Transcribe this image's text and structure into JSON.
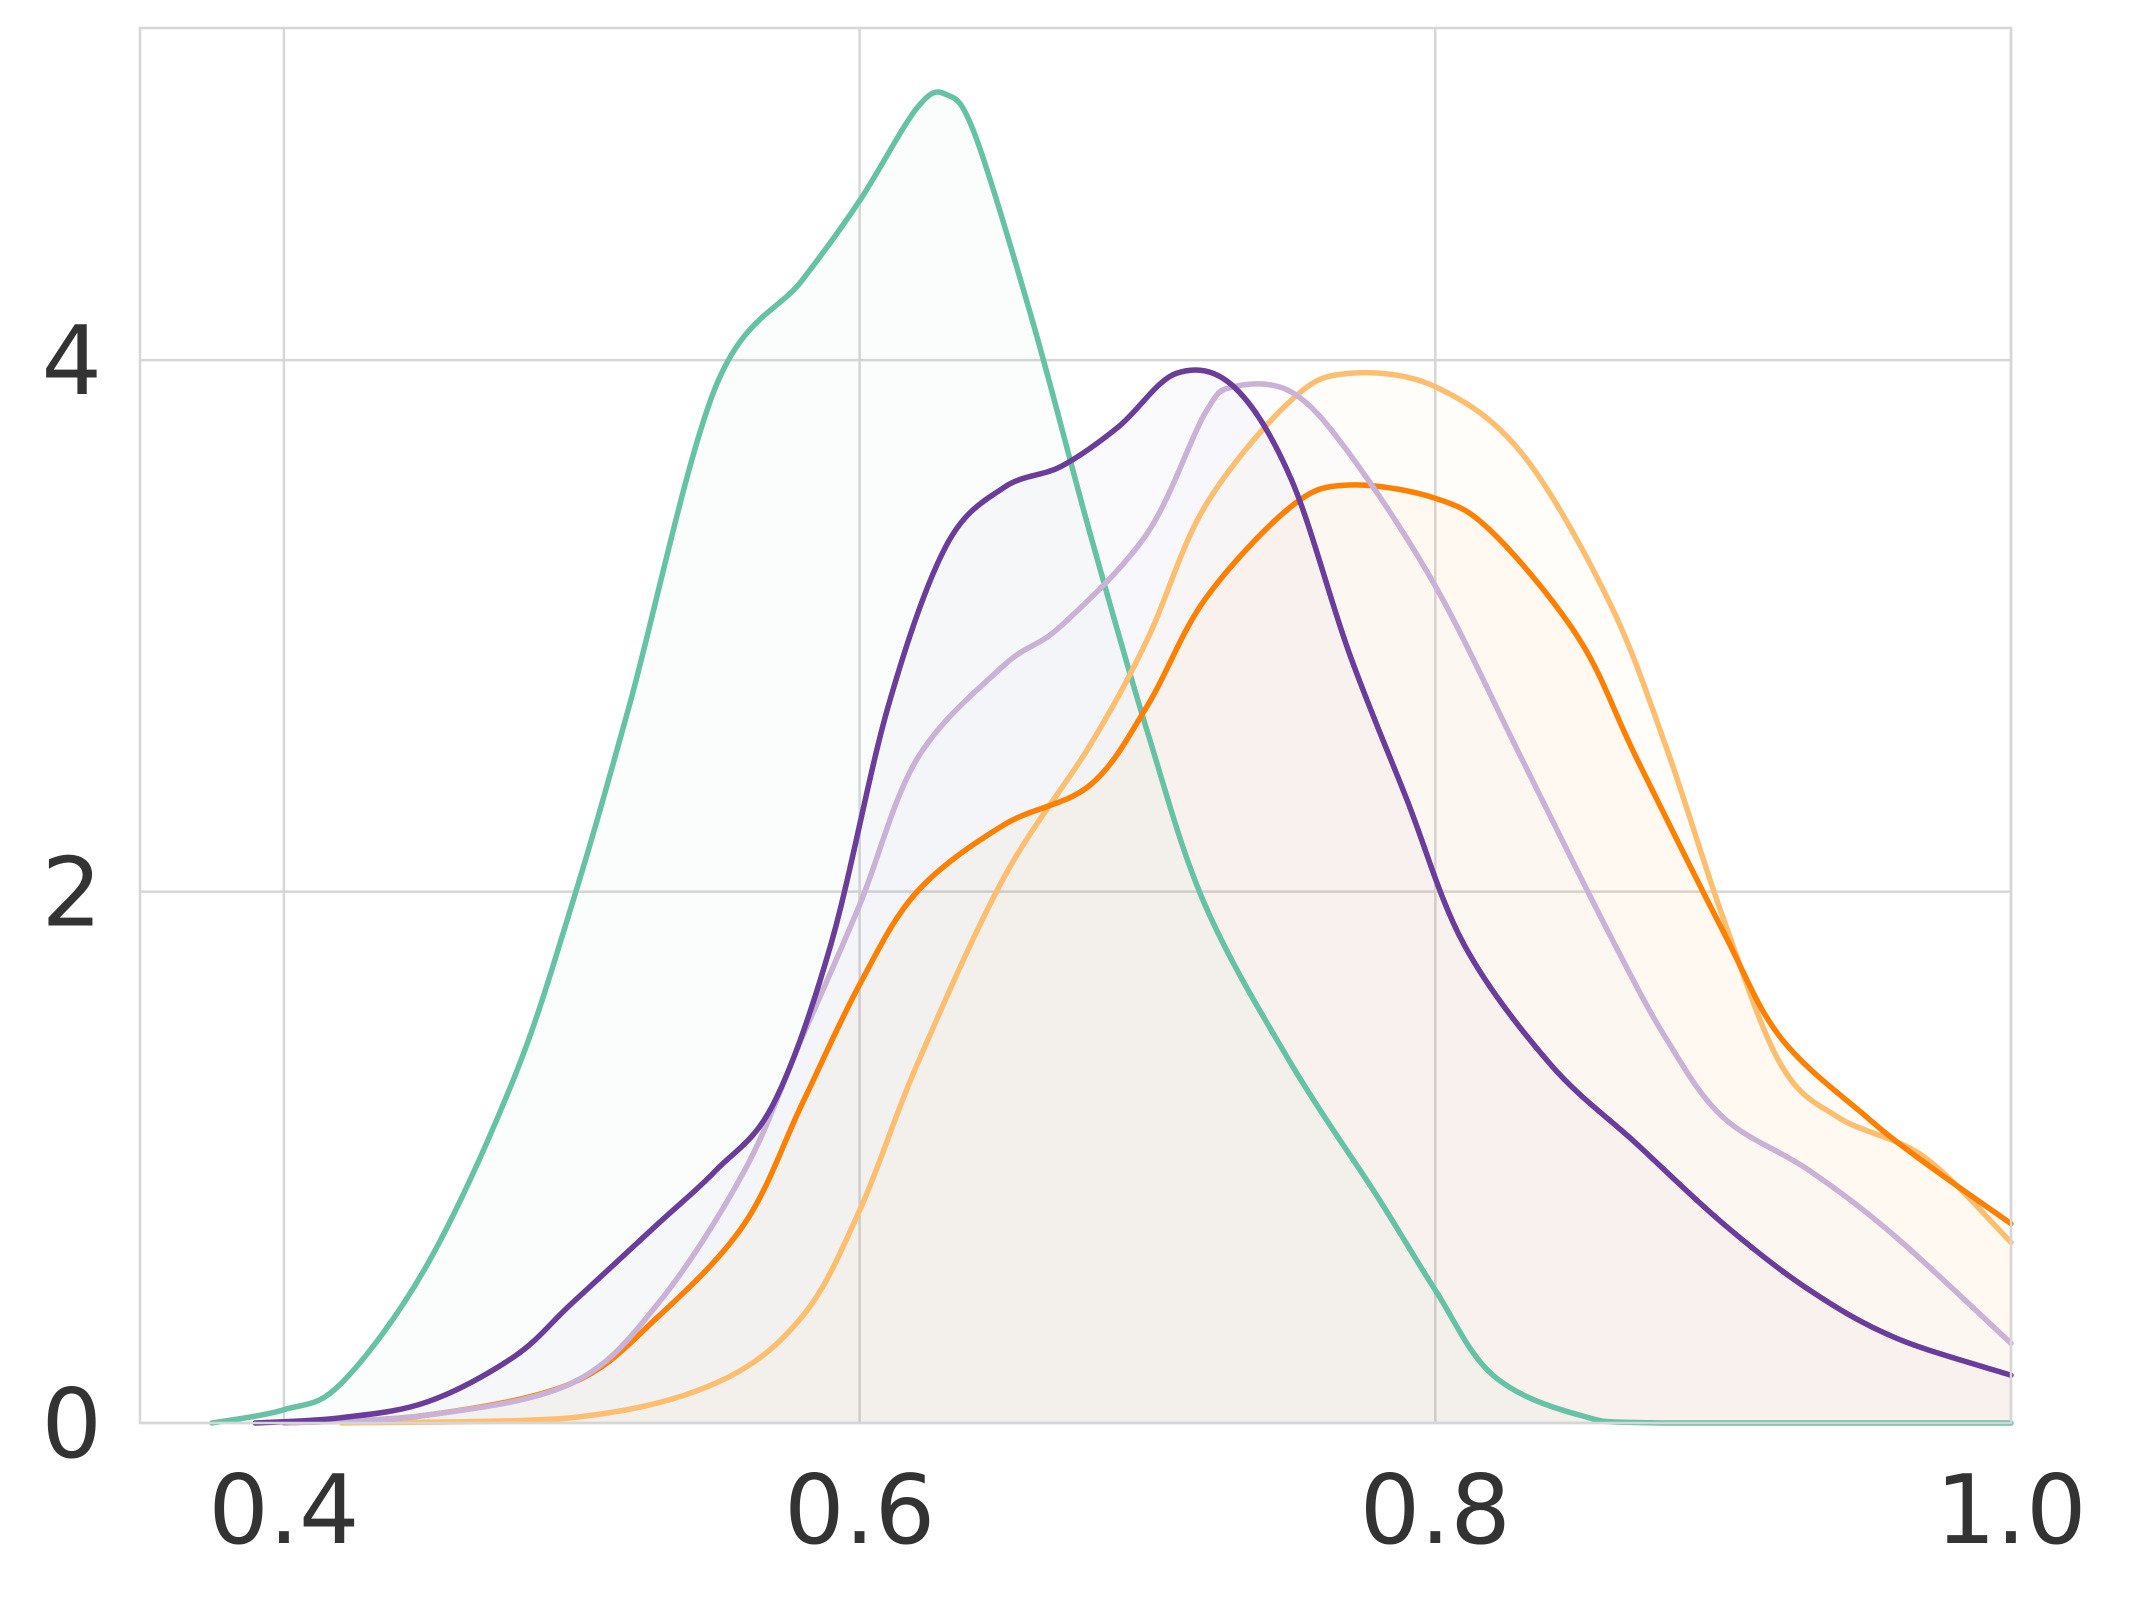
{
  "chart_data": {
    "type": "area",
    "title": "",
    "xlabel": "",
    "ylabel": "",
    "xlim": [
      0.35,
      1.0
    ],
    "ylim": [
      0,
      5.25
    ],
    "xticks": [
      0.4,
      0.6,
      0.8,
      1.0
    ],
    "xtick_labels": [
      "0.4",
      "0.6",
      "0.8",
      "1.0"
    ],
    "yticks": [
      0,
      2,
      4
    ],
    "ytick_labels": [
      "0",
      "2",
      "4"
    ],
    "grid": true,
    "legend": "none",
    "series": [
      {
        "color": "#66c2a5",
        "fill_opacity": 0.03,
        "points": [
          [
            0.375,
            0.0
          ],
          [
            0.4,
            0.05
          ],
          [
            0.42,
            0.15
          ],
          [
            0.45,
            0.6
          ],
          [
            0.48,
            1.3
          ],
          [
            0.5,
            1.95
          ],
          [
            0.52,
            2.7
          ],
          [
            0.55,
            3.9
          ],
          [
            0.58,
            4.3
          ],
          [
            0.6,
            4.6
          ],
          [
            0.62,
            4.95
          ],
          [
            0.63,
            5.0
          ],
          [
            0.64,
            4.85
          ],
          [
            0.66,
            4.15
          ],
          [
            0.68,
            3.35
          ],
          [
            0.7,
            2.6
          ],
          [
            0.72,
            1.95
          ],
          [
            0.75,
            1.35
          ],
          [
            0.78,
            0.85
          ],
          [
            0.8,
            0.5
          ],
          [
            0.82,
            0.18
          ],
          [
            0.85,
            0.03
          ],
          [
            0.88,
            0.0
          ],
          [
            1.0,
            0.0
          ]
        ]
      },
      {
        "color": "#fdbf6f",
        "fill_opacity": 0.03,
        "points": [
          [
            0.42,
            0.0
          ],
          [
            0.5,
            0.02
          ],
          [
            0.55,
            0.15
          ],
          [
            0.58,
            0.4
          ],
          [
            0.6,
            0.8
          ],
          [
            0.62,
            1.35
          ],
          [
            0.65,
            2.05
          ],
          [
            0.68,
            2.55
          ],
          [
            0.7,
            2.95
          ],
          [
            0.72,
            3.45
          ],
          [
            0.75,
            3.85
          ],
          [
            0.77,
            3.95
          ],
          [
            0.8,
            3.9
          ],
          [
            0.83,
            3.65
          ],
          [
            0.86,
            3.1
          ],
          [
            0.88,
            2.55
          ],
          [
            0.9,
            1.9
          ],
          [
            0.92,
            1.35
          ],
          [
            0.94,
            1.15
          ],
          [
            0.97,
            1.0
          ],
          [
            1.0,
            0.68
          ]
        ]
      },
      {
        "color": "#ff7f00",
        "fill_opacity": 0.03,
        "points": [
          [
            0.4,
            0.0
          ],
          [
            0.45,
            0.03
          ],
          [
            0.5,
            0.15
          ],
          [
            0.53,
            0.4
          ],
          [
            0.56,
            0.75
          ],
          [
            0.58,
            1.2
          ],
          [
            0.6,
            1.65
          ],
          [
            0.62,
            2.0
          ],
          [
            0.65,
            2.25
          ],
          [
            0.68,
            2.4
          ],
          [
            0.7,
            2.7
          ],
          [
            0.72,
            3.1
          ],
          [
            0.75,
            3.45
          ],
          [
            0.77,
            3.53
          ],
          [
            0.8,
            3.48
          ],
          [
            0.82,
            3.35
          ],
          [
            0.85,
            2.95
          ],
          [
            0.87,
            2.5
          ],
          [
            0.9,
            1.85
          ],
          [
            0.92,
            1.45
          ],
          [
            0.95,
            1.15
          ],
          [
            0.97,
            0.98
          ],
          [
            1.0,
            0.75
          ]
        ]
      },
      {
        "color": "#cab2d6",
        "fill_opacity": 0.03,
        "points": [
          [
            0.4,
            0.0
          ],
          [
            0.45,
            0.03
          ],
          [
            0.5,
            0.15
          ],
          [
            0.53,
            0.45
          ],
          [
            0.56,
            0.95
          ],
          [
            0.58,
            1.45
          ],
          [
            0.6,
            1.95
          ],
          [
            0.62,
            2.5
          ],
          [
            0.65,
            2.85
          ],
          [
            0.67,
            3.0
          ],
          [
            0.7,
            3.35
          ],
          [
            0.72,
            3.8
          ],
          [
            0.73,
            3.9
          ],
          [
            0.75,
            3.88
          ],
          [
            0.77,
            3.65
          ],
          [
            0.8,
            3.15
          ],
          [
            0.83,
            2.5
          ],
          [
            0.86,
            1.85
          ],
          [
            0.88,
            1.45
          ],
          [
            0.9,
            1.15
          ],
          [
            0.93,
            0.95
          ],
          [
            0.96,
            0.7
          ],
          [
            1.0,
            0.3
          ]
        ]
      },
      {
        "color": "#6a3d9a",
        "fill_opacity": 0.03,
        "points": [
          [
            0.39,
            0.0
          ],
          [
            0.42,
            0.02
          ],
          [
            0.45,
            0.08
          ],
          [
            0.48,
            0.25
          ],
          [
            0.5,
            0.45
          ],
          [
            0.53,
            0.75
          ],
          [
            0.55,
            0.95
          ],
          [
            0.57,
            1.2
          ],
          [
            0.59,
            1.8
          ],
          [
            0.61,
            2.7
          ],
          [
            0.63,
            3.3
          ],
          [
            0.65,
            3.52
          ],
          [
            0.67,
            3.6
          ],
          [
            0.69,
            3.75
          ],
          [
            0.71,
            3.95
          ],
          [
            0.73,
            3.9
          ],
          [
            0.75,
            3.55
          ],
          [
            0.77,
            2.9
          ],
          [
            0.79,
            2.35
          ],
          [
            0.81,
            1.8
          ],
          [
            0.84,
            1.35
          ],
          [
            0.87,
            1.05
          ],
          [
            0.9,
            0.75
          ],
          [
            0.93,
            0.5
          ],
          [
            0.96,
            0.32
          ],
          [
            1.0,
            0.18
          ]
        ]
      }
    ]
  }
}
